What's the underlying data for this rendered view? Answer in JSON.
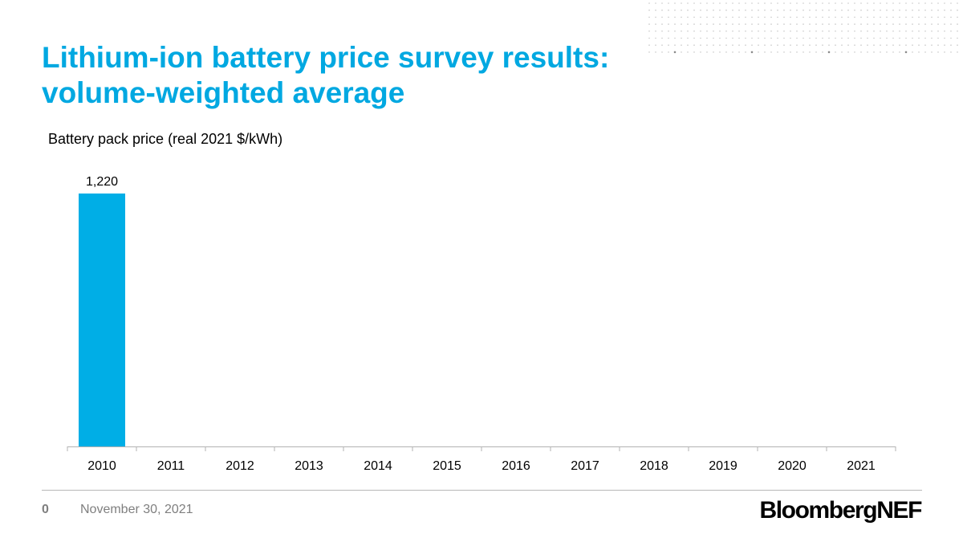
{
  "title_lines": [
    "Lithium-ion battery price survey results:",
    "volume-weighted average"
  ],
  "footer": {
    "page_number": "0",
    "date": "November 30, 2021",
    "logo": "BloombergNEF"
  },
  "colors": {
    "accent": "#00a8e1",
    "bar": "#00aee6",
    "text_gray": "#7f7f7f"
  },
  "chart_data": {
    "type": "bar",
    "ylabel": "Battery pack price (real 2021 $/kWh)",
    "categories": [
      "2010",
      "2011",
      "2012",
      "2013",
      "2014",
      "2015",
      "2016",
      "2017",
      "2018",
      "2019",
      "2020",
      "2021"
    ],
    "series": [
      {
        "values": [
          1220,
          null,
          null,
          null,
          null,
          null,
          null,
          null,
          null,
          null,
          null,
          null
        ]
      }
    ],
    "data_labels": [
      "1,220",
      null,
      null,
      null,
      null,
      null,
      null,
      null,
      null,
      null,
      null,
      null
    ],
    "ylim": [
      0,
      1220
    ],
    "grid": false,
    "legend": "none"
  }
}
